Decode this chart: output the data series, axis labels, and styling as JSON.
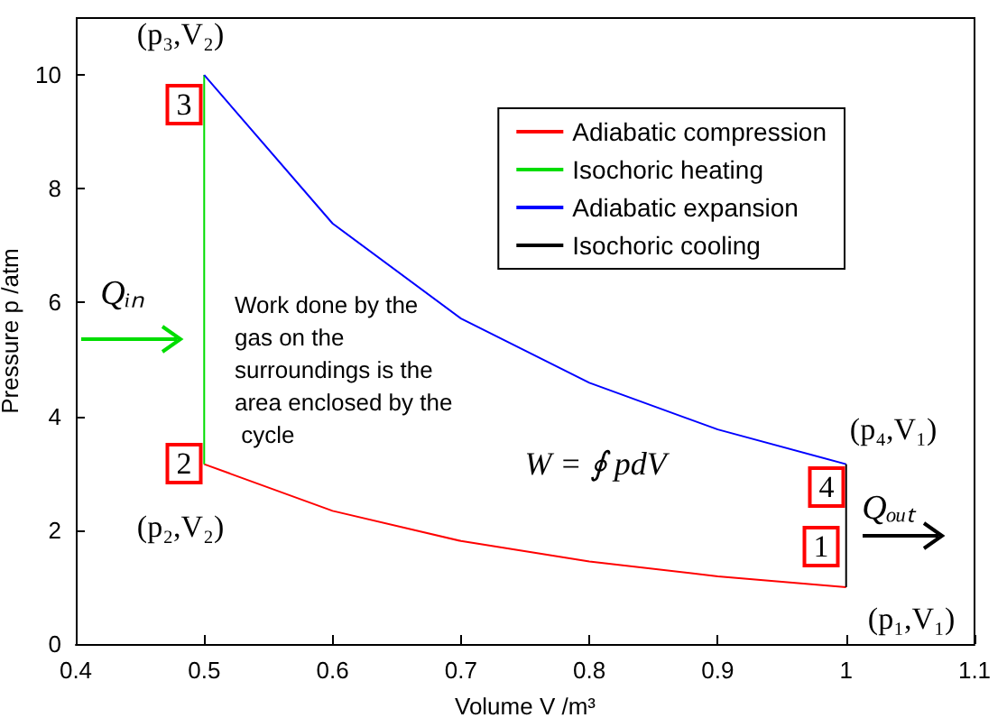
{
  "chart_data": {
    "type": "line",
    "xlabel": "Volume V /m³",
    "ylabel": "Pressure p /atm",
    "xlim": [
      0.4,
      1.1
    ],
    "xticks": [
      0.4,
      0.5,
      0.6,
      0.7,
      0.8,
      0.9,
      1,
      1.1
    ],
    "ylim": [
      0,
      11
    ],
    "yticks": [
      0,
      2,
      4,
      6,
      8,
      10
    ],
    "grid": false,
    "legend": "top right",
    "series": [
      {
        "name": "Adiabatic compression",
        "color": "#ff0000",
        "x": [
          1,
          0.9,
          0.8,
          0.7,
          0.6,
          0.5
        ],
        "values": [
          1,
          1.19,
          1.45,
          1.81,
          2.34,
          3.16
        ]
      },
      {
        "name": "Isochoric heating",
        "color": "#00dd00",
        "x": [
          0.5,
          0.5
        ],
        "values": [
          3.16,
          10
        ]
      },
      {
        "name": "Adiabatic expansion",
        "color": "#0000ff",
        "x": [
          0.5,
          0.6,
          0.7,
          0.8,
          0.9,
          1
        ],
        "values": [
          10,
          7.39,
          5.72,
          4.59,
          3.77,
          3.16
        ]
      },
      {
        "name": "Isochoric cooling",
        "color": "#000000",
        "x": [
          1,
          1
        ],
        "values": [
          3.16,
          1
        ]
      }
    ],
    "annotations": [
      "(p₃,V₂)",
      "(p₂,V₂)",
      "(p₄,V₁)",
      "(p₁,V₁)",
      "3",
      "2",
      "4",
      "1",
      "Qᵢₙ",
      "Qₒᵤₜ",
      "Work done by the gas on the surroundings is the area enclosed by the cycle",
      "W = ∮ pdV"
    ]
  }
}
